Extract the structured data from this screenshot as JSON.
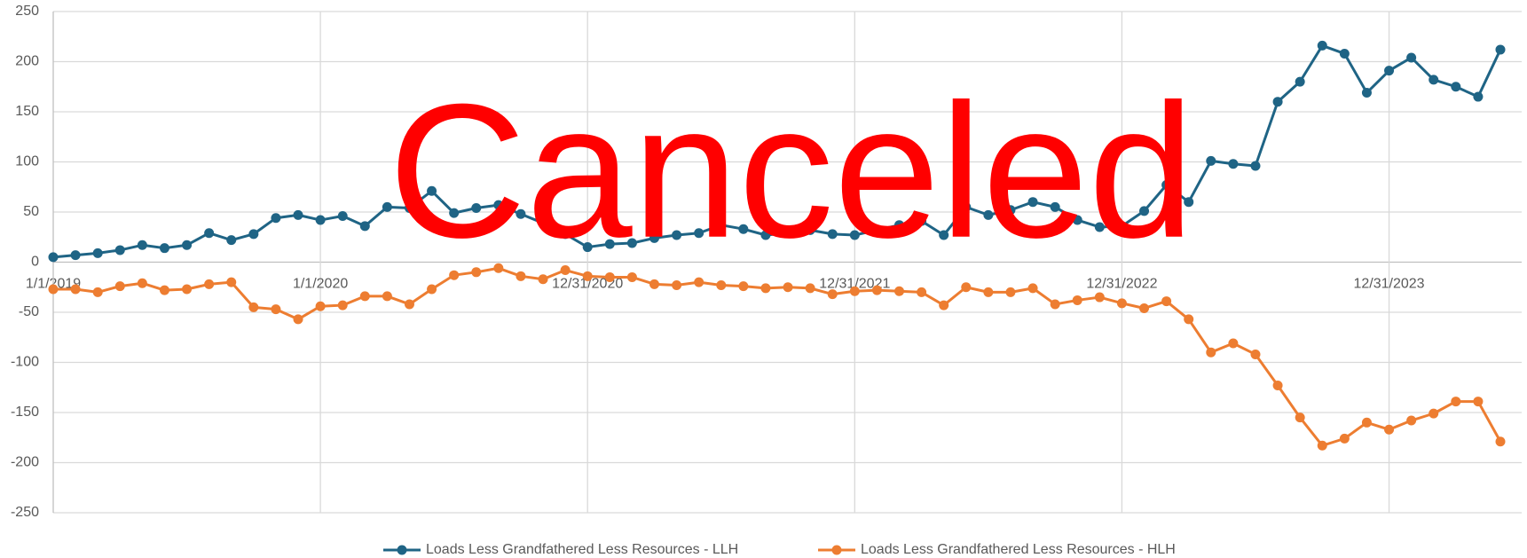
{
  "chart_data": {
    "type": "line",
    "watermark": "Canceled",
    "categories": [
      "1/1/2019",
      null,
      null,
      null,
      null,
      null,
      null,
      null,
      null,
      null,
      null,
      null,
      "1/1/2020",
      null,
      null,
      null,
      null,
      null,
      null,
      null,
      null,
      null,
      null,
      null,
      "12/31/2020",
      null,
      null,
      null,
      null,
      null,
      null,
      null,
      null,
      null,
      null,
      null,
      "12/31/2021",
      null,
      null,
      null,
      null,
      null,
      null,
      null,
      null,
      null,
      null,
      null,
      "12/31/2022",
      null,
      null,
      null,
      null,
      null,
      null,
      null,
      null,
      null,
      null,
      null,
      "12/31/2023",
      null,
      null,
      null,
      null,
      null
    ],
    "series": [
      {
        "name": "Loads Less Grandfathered Less Resources - LLH",
        "color": "#1f6485",
        "values": [
          5,
          7,
          9,
          12,
          17,
          14,
          17,
          29,
          22,
          28,
          44,
          47,
          42,
          46,
          36,
          55,
          54,
          71,
          49,
          54,
          57,
          48,
          39,
          28,
          15,
          18,
          19,
          24,
          27,
          29,
          37,
          33,
          27,
          29,
          32,
          28,
          27,
          32,
          37,
          41,
          27,
          55,
          47,
          52,
          60,
          55,
          42,
          35,
          36,
          51,
          77,
          60,
          101,
          98,
          96,
          160,
          180,
          216,
          208,
          169,
          191,
          204,
          182,
          175,
          165,
          212
        ]
      },
      {
        "name": "Loads Less Grandfathered Less Resources - HLH",
        "color": "#ed7d31",
        "values": [
          -27,
          -27,
          -30,
          -24,
          -21,
          -28,
          -27,
          -22,
          -20,
          -45,
          -47,
          -57,
          -44,
          -43,
          -34,
          -34,
          -42,
          -27,
          -13,
          -10,
          -6,
          -14,
          -17,
          -8,
          -14,
          -15,
          -15,
          -22,
          -23,
          -20,
          -23,
          -24,
          -26,
          -25,
          -26,
          -32,
          -29,
          -28,
          -29,
          -30,
          -43,
          -25,
          -30,
          -30,
          -26,
          -42,
          -38,
          -35,
          -41,
          -46,
          -39,
          -57,
          -90,
          -81,
          -92,
          -123,
          -155,
          -183,
          -176,
          -160,
          -167,
          -158,
          -151,
          -139,
          -139,
          -179
        ]
      }
    ],
    "ylim": [
      -250,
      250
    ],
    "yticks": [
      -250,
      -200,
      -150,
      -100,
      -50,
      0,
      50,
      100,
      150,
      200,
      250
    ],
    "grid": true
  }
}
